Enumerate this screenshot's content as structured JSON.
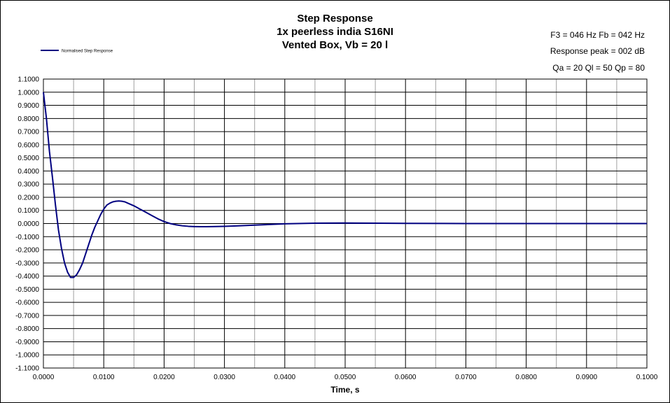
{
  "chart_data": {
    "type": "line",
    "title": [
      "Step Response",
      "1x peerless india S16NI",
      "Vented Box, Vb = 20 l"
    ],
    "annotations": [
      "F3 = 046 Hz  Fb = 042 Hz",
      "Response peak = 002 dB",
      "Qa = 20  Ql = 50  Qp = 80"
    ],
    "xlabel": "Time, s",
    "ylabel": "",
    "xlim": [
      0,
      0.1
    ],
    "ylim": [
      -1.1,
      1.1
    ],
    "x_ticks": [
      "0.0000",
      "0.0100",
      "0.0200",
      "0.0300",
      "0.0400",
      "0.0500",
      "0.0600",
      "0.0700",
      "0.0800",
      "0.0900",
      "0.1000"
    ],
    "y_ticks": [
      "1.1000",
      "1.0000",
      "0.9000",
      "0.8000",
      "0.7000",
      "0.6000",
      "0.5000",
      "0.4000",
      "0.3000",
      "0.2000",
      "0.1000",
      "0.0000",
      "-0.1000",
      "-0.2000",
      "-0.3000",
      "-0.4000",
      "-0.5000",
      "-0.6000",
      "-0.7000",
      "-0.8000",
      "-0.9000",
      "-1.0000",
      "-1.1000"
    ],
    "grid": true,
    "legend_position": "top-left",
    "series": [
      {
        "name": "Normalised Step Response",
        "color": "#000080",
        "x": [
          0,
          0.0005,
          0.001,
          0.0015,
          0.002,
          0.0025,
          0.003,
          0.0035,
          0.004,
          0.0045,
          0.005,
          0.0055,
          0.006,
          0.0065,
          0.007,
          0.0075,
          0.008,
          0.0085,
          0.009,
          0.0095,
          0.01,
          0.0105,
          0.011,
          0.0115,
          0.012,
          0.0125,
          0.013,
          0.0135,
          0.014,
          0.0145,
          0.015,
          0.016,
          0.017,
          0.018,
          0.019,
          0.02,
          0.021,
          0.022,
          0.023,
          0.024,
          0.025,
          0.026,
          0.027,
          0.028,
          0.03,
          0.032,
          0.035,
          0.038,
          0.04,
          0.045,
          0.05,
          0.055,
          0.06,
          0.07,
          0.08,
          0.09,
          0.1
        ],
        "y": [
          1.0,
          0.8,
          0.55,
          0.35,
          0.14,
          -0.05,
          -0.19,
          -0.3,
          -0.37,
          -0.41,
          -0.41,
          -0.39,
          -0.35,
          -0.3,
          -0.23,
          -0.16,
          -0.09,
          -0.03,
          0.02,
          0.07,
          0.11,
          0.14,
          0.155,
          0.165,
          0.17,
          0.172,
          0.17,
          0.165,
          0.155,
          0.145,
          0.135,
          0.11,
          0.085,
          0.06,
          0.035,
          0.015,
          0.0,
          -0.01,
          -0.017,
          -0.021,
          -0.023,
          -0.024,
          -0.024,
          -0.023,
          -0.021,
          -0.018,
          -0.012,
          -0.006,
          -0.002,
          0.003,
          0.004,
          0.003,
          0.001,
          0.0,
          0.0,
          0.0,
          0.0
        ]
      }
    ]
  }
}
